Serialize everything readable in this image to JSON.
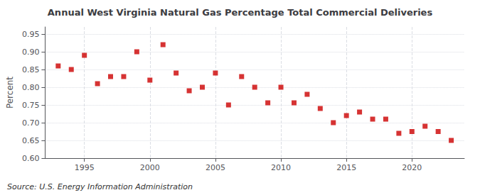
{
  "chart_data": {
    "type": "scatter",
    "title": "Annual West Virginia Natural Gas Percentage Total Commercial Deliveries",
    "ylabel": "Percent",
    "annotation": "Source: U.S. Energy Information Administration",
    "x": [
      1993,
      1994,
      1995,
      1996,
      1997,
      1998,
      1999,
      2000,
      2001,
      2002,
      2003,
      2004,
      2005,
      2006,
      2007,
      2008,
      2009,
      2010,
      2011,
      2012,
      2013,
      2014,
      2015,
      2016,
      2017,
      2018,
      2019,
      2020,
      2021,
      2022,
      2023
    ],
    "values": [
      0.86,
      0.85,
      0.89,
      0.81,
      0.83,
      0.83,
      0.9,
      0.82,
      0.92,
      0.84,
      0.79,
      0.8,
      0.84,
      0.75,
      0.83,
      0.8,
      0.756,
      0.8,
      0.756,
      0.78,
      0.74,
      0.7,
      0.72,
      0.73,
      0.71,
      0.71,
      0.67,
      0.675,
      0.69,
      0.675,
      0.65
    ],
    "xlim": [
      1992,
      2024
    ],
    "xticks": [
      1995,
      2000,
      2005,
      2010,
      2015,
      2020
    ],
    "ylim": [
      0.6,
      0.97
    ],
    "yticks": [
      {
        "value": 0.6,
        "label": "0.60"
      },
      0.65,
      {
        "value": 0.7,
        "label": "0.70"
      },
      0.75,
      {
        "value": 0.8,
        "label": "0.80"
      },
      0.85,
      {
        "value": 0.9,
        "label": "0.90"
      },
      0.95
    ],
    "color": "#cc0000",
    "marker": "square",
    "grid": true
  }
}
